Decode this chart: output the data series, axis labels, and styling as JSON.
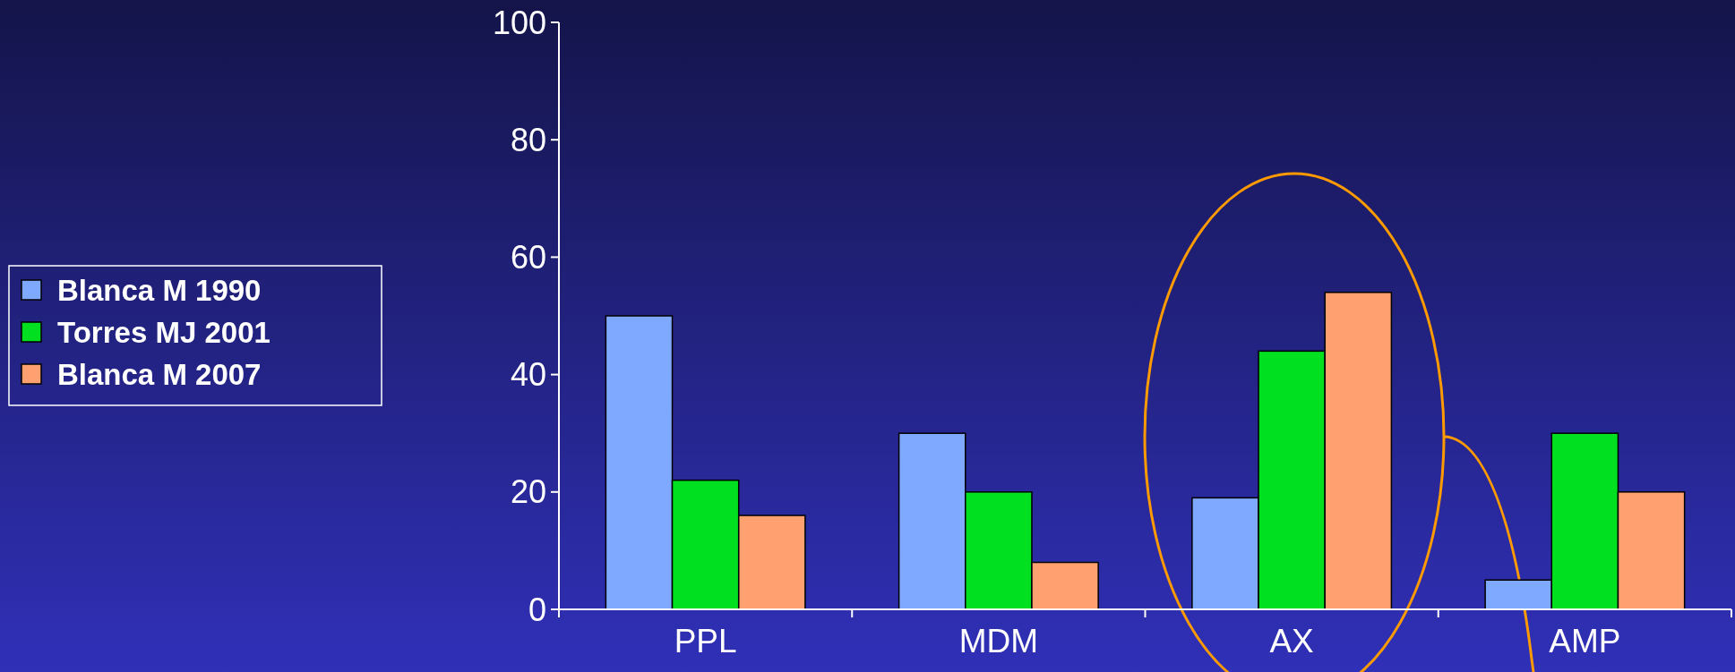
{
  "chart_data": {
    "type": "bar",
    "categories": [
      "PPL",
      "MDM",
      "AX",
      "AMP"
    ],
    "series": [
      {
        "name": "Blanca M 1990",
        "color": "#7fa8ff",
        "values": [
          50,
          30,
          19,
          5
        ]
      },
      {
        "name": "Torres MJ 2001",
        "color": "#00e020",
        "values": [
          22,
          20,
          44,
          30
        ]
      },
      {
        "name": "Blanca M 2007",
        "color": "#ffa070",
        "values": [
          16,
          8,
          54,
          20
        ]
      }
    ],
    "ylim": [
      0,
      100
    ],
    "yticks": [
      0,
      20,
      40,
      60,
      80,
      100
    ],
    "grid": false,
    "legend": "left"
  }
}
